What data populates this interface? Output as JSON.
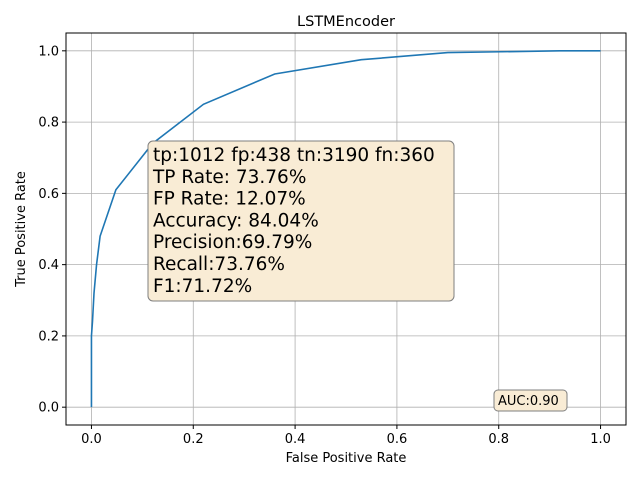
{
  "chart_data": {
    "type": "line",
    "title": "LSTMEncoder",
    "xlabel": "False Positive Rate",
    "ylabel": "True Positive Rate",
    "xlim": [
      -0.05,
      1.05
    ],
    "ylim": [
      -0.05,
      1.05
    ],
    "xticks": [
      "0.0",
      "0.2",
      "0.4",
      "0.6",
      "0.8",
      "1.0"
    ],
    "yticks": [
      "0.0",
      "0.2",
      "0.4",
      "0.6",
      "0.8",
      "1.0"
    ],
    "grid": true,
    "series": [
      {
        "color": "#1f77b4",
        "x": [
          0.0,
          0.0,
          0.002,
          0.005,
          0.01,
          0.017,
          0.048,
          0.12,
          0.22,
          0.36,
          0.53,
          0.7,
          0.92,
          1.0
        ],
        "y": [
          0.0,
          0.2,
          0.24,
          0.32,
          0.4,
          0.48,
          0.61,
          0.74,
          0.85,
          0.935,
          0.975,
          0.995,
          1.0,
          1.0
        ]
      }
    ],
    "annotations": {
      "stats": [
        "tp:1012 fp:438 tn:3190 fn:360",
        "TP Rate: 73.76%",
        "FP Rate: 12.07%",
        "Accuracy: 84.04%",
        "Precision:69.79%",
        "Recall:73.76%",
        "F1:71.72%"
      ],
      "auc": "AUC:0.90"
    },
    "colors": {
      "box_fill": "#f9ecd5",
      "box_stroke": "#7f7f7f"
    }
  }
}
